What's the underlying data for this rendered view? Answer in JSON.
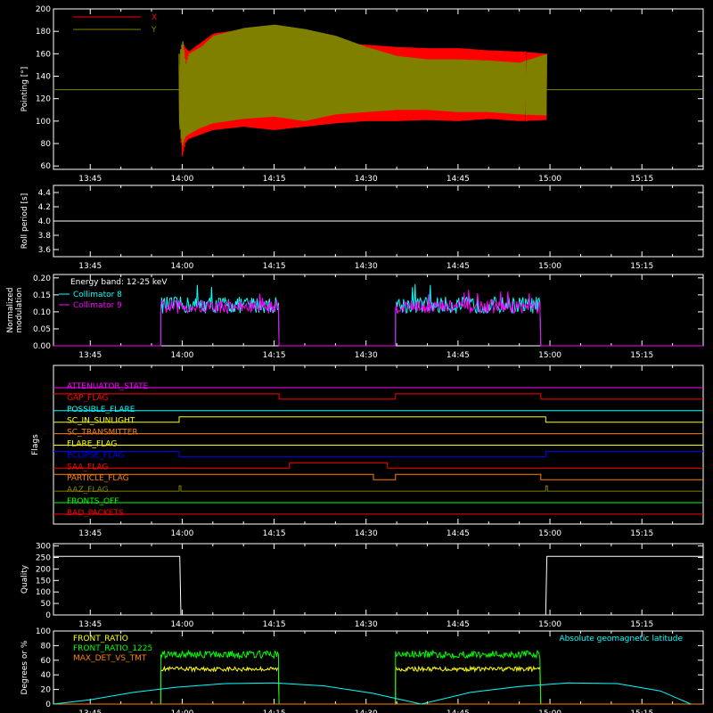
{
  "time_axis": {
    "tick_labels": [
      "13:45",
      "14:00",
      "14:15",
      "14:30",
      "14:45",
      "15:00",
      "15:15"
    ],
    "tick_minutes": [
      0,
      15,
      30,
      45,
      60,
      75,
      90
    ],
    "range_minutes": [
      -6,
      100
    ]
  },
  "chart_data": [
    {
      "id": "pointing",
      "type": "area",
      "ylabel": "Pointing [°]",
      "ylim": [
        57,
        200
      ],
      "yticks": [
        60,
        80,
        100,
        120,
        140,
        160,
        180,
        200
      ],
      "legend": [
        {
          "name": "X",
          "color": "#ff0000"
        },
        {
          "name": "Y",
          "color": "#808000"
        }
      ],
      "baseline": {
        "value": 128,
        "color": "#808000"
      },
      "data_span_minutes": [
        14.5,
        74.5
      ],
      "series": [
        {
          "name": "X",
          "color": "#ff0000",
          "envelope_x_min": [
            14.5,
            15,
            15.5,
            16,
            18,
            20,
            25,
            30,
            35,
            40,
            45,
            50,
            55,
            60,
            65,
            70,
            74.5
          ],
          "upper": [
            150,
            170,
            165,
            162,
            170,
            178,
            182,
            180,
            172,
            170,
            168,
            166,
            165,
            165,
            163,
            162,
            160
          ],
          "lower": [
            110,
            68,
            80,
            84,
            88,
            92,
            95,
            92,
            95,
            98,
            100,
            100,
            101,
            100,
            102,
            100,
            101
          ]
        },
        {
          "name": "Y",
          "color": "#808000",
          "envelope_x_min": [
            14.5,
            15,
            15.5,
            16,
            18,
            20,
            25,
            30,
            35,
            40,
            45,
            50,
            55,
            60,
            65,
            70,
            74.5
          ],
          "upper": [
            160,
            172,
            150,
            160,
            166,
            176,
            183,
            186,
            182,
            176,
            166,
            158,
            155,
            155,
            154,
            152,
            160
          ],
          "lower": [
            100,
            78,
            86,
            88,
            94,
            98,
            102,
            104,
            100,
            106,
            108,
            110,
            110,
            108,
            108,
            106,
            105
          ]
        }
      ]
    },
    {
      "id": "roll_period",
      "type": "line",
      "ylabel": "Roll period [s]",
      "ylim": [
        3.5,
        4.5
      ],
      "yticks": [
        3.6,
        3.8,
        4.0,
        4.2,
        4.4
      ],
      "ytick_labels": [
        "3.6",
        "3.8",
        "4.0",
        "4.2",
        "4.4"
      ],
      "series": [
        {
          "name": "",
          "color": "#ffffff",
          "x": [
            -6,
            100
          ],
          "y": [
            4.0,
            4.0
          ]
        }
      ]
    },
    {
      "id": "modulation",
      "type": "line",
      "ylabel": "Normalized modulation",
      "ylabel_lines": [
        "Normalized",
        "modulation"
      ],
      "ylim": [
        0,
        0.21
      ],
      "yticks": [
        0.0,
        0.05,
        0.1,
        0.15,
        0.2
      ],
      "ytick_labels": [
        "0.00",
        "0.05",
        "0.10",
        "0.15",
        "0.20"
      ],
      "annotation": "Energy band: 12-25 keV",
      "active_intervals_minutes": [
        [
          11.5,
          30.8
        ],
        [
          49.8,
          73.5
        ]
      ],
      "series": [
        {
          "name": "Collimator 8",
          "color": "#00ffff",
          "level": 0.12,
          "spread": 0.025
        },
        {
          "name": "Collimator 9",
          "color": "#ff00ff",
          "level": 0.115,
          "spread": 0.02
        }
      ]
    },
    {
      "id": "flags",
      "type": "line",
      "ylabel": "Flags",
      "series": [
        {
          "name": "ATTENUATOR_STATE",
          "color": "#ff00ff",
          "steps": [
            [
              -6,
              0
            ],
            [
              100,
              0
            ]
          ]
        },
        {
          "name": "GAP_FLAG",
          "color": "#ff0000",
          "steps": [
            [
              -6,
              1
            ],
            [
              30.8,
              0
            ],
            [
              49.8,
              1
            ],
            [
              73.5,
              0
            ],
            [
              100,
              0
            ]
          ]
        },
        {
          "name": "POSSIBLE_FLARE",
          "color": "#00ffff",
          "steps": [
            [
              -6,
              0
            ],
            [
              100,
              0
            ]
          ]
        },
        {
          "name": "SC_IN_SUNLIGHT",
          "color": "#ffff00",
          "steps": [
            [
              -6,
              0
            ],
            [
              14.5,
              1
            ],
            [
              74.3,
              0
            ],
            [
              100,
              0
            ]
          ]
        },
        {
          "name": "SC_TRANSMITTER",
          "color": "#ff8000",
          "steps": [
            [
              -6,
              0
            ],
            [
              100,
              0
            ]
          ]
        },
        {
          "name": "FLARE_FLAG",
          "color": "#ffff00",
          "steps": [
            [
              -6,
              0
            ],
            [
              100,
              0
            ]
          ]
        },
        {
          "name": "ECLIPSE_FLAG",
          "color": "#0000ff",
          "steps": [
            [
              -6,
              1
            ],
            [
              14.5,
              0
            ],
            [
              74.3,
              1
            ],
            [
              100,
              1
            ]
          ]
        },
        {
          "name": "SAA_FLAG",
          "color": "#ff0000",
          "steps": [
            [
              -6,
              0
            ],
            [
              32.5,
              1
            ],
            [
              48.5,
              0
            ],
            [
              100,
              0
            ]
          ]
        },
        {
          "name": "PARTICLE_FLAG",
          "color": "#ff8000",
          "steps": [
            [
              -6,
              1
            ],
            [
              46.2,
              0
            ],
            [
              49.8,
              1
            ],
            [
              73.5,
              0
            ],
            [
              100,
              0
            ]
          ]
        },
        {
          "name": "AAZ_FLAG",
          "color": "#808000",
          "steps": [
            [
              -6,
              0
            ],
            [
              14.5,
              1
            ],
            [
              14.8,
              0
            ],
            [
              74.3,
              1
            ],
            [
              74.6,
              0
            ],
            [
              100,
              0
            ]
          ]
        },
        {
          "name": "FRONTS_OFF",
          "color": "#00ff00",
          "steps": [
            [
              -6,
              0
            ],
            [
              100,
              0
            ]
          ]
        },
        {
          "name": "BAD_PACKETS",
          "color": "#ff0000",
          "steps": [
            [
              -6,
              0
            ],
            [
              100,
              0
            ]
          ]
        }
      ]
    },
    {
      "id": "quality",
      "type": "line",
      "ylabel": "Quality",
      "ylim": [
        0,
        310
      ],
      "yticks": [
        0,
        50,
        100,
        150,
        200,
        250,
        300
      ],
      "series": [
        {
          "name": "",
          "color": "#ffffff",
          "x": [
            -6,
            14.6,
            14.8,
            74.3,
            74.5,
            100
          ],
          "y": [
            255,
            255,
            0,
            0,
            255,
            255
          ]
        }
      ]
    },
    {
      "id": "front_ratio",
      "type": "line",
      "ylabel": "Degrees or %",
      "ylim": [
        0,
        100
      ],
      "yticks": [
        0,
        20,
        40,
        60,
        80,
        100
      ],
      "legend": [
        {
          "name": "FRONT_RATIO",
          "color": "#ffff00"
        },
        {
          "name": "FRONT_RATIO_1225",
          "color": "#00ff00"
        },
        {
          "name": "MAX_DET_VS_TMT",
          "color": "#ff8000"
        }
      ],
      "annotation": "Absolute geomagnetic latitude",
      "annotation_color": "#00ffff",
      "active_intervals_minutes": [
        [
          11.5,
          30.8
        ],
        [
          49.8,
          73.5
        ]
      ],
      "series": [
        {
          "name": "FRONT_RATIO",
          "color": "#ffff00",
          "level": 48,
          "spread": 3
        },
        {
          "name": "FRONT_RATIO_1225",
          "color": "#00ff00",
          "level": 68,
          "spread": 5
        },
        {
          "name": "MAX_DET_VS_TMT",
          "color": "#ff8000",
          "level": 0,
          "spread": 0
        },
        {
          "name": "Absolute geomagnetic latitude",
          "color": "#00ffff",
          "x": [
            -6,
            0,
            7,
            14,
            22,
            30,
            38,
            46,
            54,
            62,
            70,
            78,
            86,
            93,
            98
          ],
          "y": [
            0,
            6,
            16,
            23,
            28,
            29,
            25,
            15,
            0,
            16,
            24,
            29,
            28,
            18,
            0
          ]
        }
      ]
    }
  ]
}
